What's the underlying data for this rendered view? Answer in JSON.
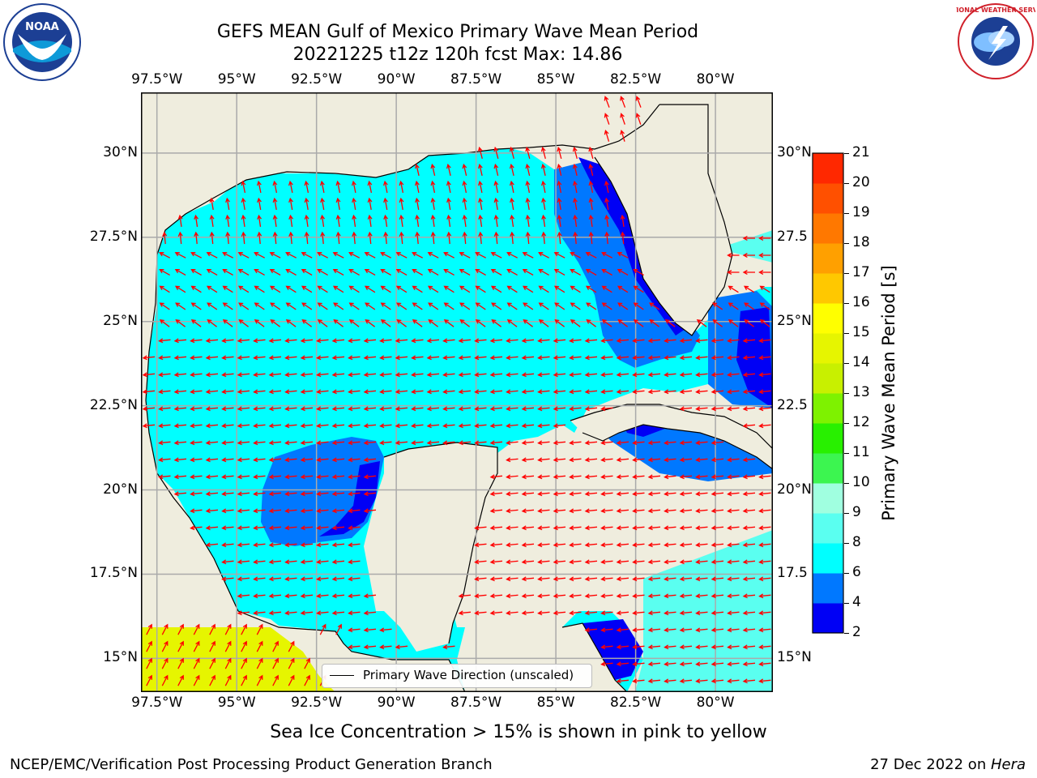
{
  "chart_data": {
    "type": "heatmap",
    "title_line1": "GEFS MEAN Gulf of Mexico Primary Wave Mean Period",
    "title_line2": "20221225 t12z 120h fcst   Max: 14.86",
    "max_value": 14.86,
    "x_ticks": [
      "97.5°W",
      "95°W",
      "92.5°W",
      "90°W",
      "87.5°W",
      "85°W",
      "82.5°W",
      "80°W"
    ],
    "x_tick_values": [
      -97.5,
      -95,
      -92.5,
      -90,
      -87.5,
      -85,
      -82.5,
      -80
    ],
    "y_ticks": [
      "15°N",
      "17.5°N",
      "20°N",
      "22.5°N",
      "25°N",
      "27.5°N",
      "30°N"
    ],
    "y_tick_values": [
      15,
      17.5,
      20,
      22.5,
      25,
      27.5,
      30
    ],
    "y_ticks_right": [
      "15°N",
      "17.5",
      "20°N",
      "22.5",
      "25°N",
      "27.5",
      "30°N"
    ],
    "lon_range": [
      -98,
      -78.2
    ],
    "lat_range": [
      14,
      31.8
    ],
    "colorbar": {
      "label": "Primary Wave Mean Period [s]",
      "ticks": [
        2,
        4,
        6,
        8,
        9,
        10,
        11,
        12,
        13,
        14,
        15,
        16,
        17,
        18,
        19,
        20,
        21
      ],
      "colors": [
        "#0000f5",
        "#0078ff",
        "#00ffff",
        "#5afff0",
        "#a0ffe0",
        "#3cf550",
        "#28f000",
        "#7ef200",
        "#c8f000",
        "#e6f500",
        "#ffff00",
        "#ffc800",
        "#ffa000",
        "#ff7800",
        "#ff5000",
        "#ff2800",
        "#ff0000"
      ]
    },
    "legend_entry": "Primary Wave Direction (unscaled)",
    "annotation": "Sea Ice Concentration > 15% is shown in pink to yellow",
    "footer_left": "NCEP/EMC/Verification Post Processing Product Generation Branch",
    "footer_right_prefix": "27 Dec 2022 on ",
    "footer_right_machine": "Hera",
    "colors": {
      "land": "#efedde",
      "arrow": "#ff0000",
      "grid": "#aaaaaa",
      "coast": "#000000"
    }
  },
  "logos": {
    "left": "NOAA",
    "right": "NATIONAL WEATHER SERVICE"
  }
}
